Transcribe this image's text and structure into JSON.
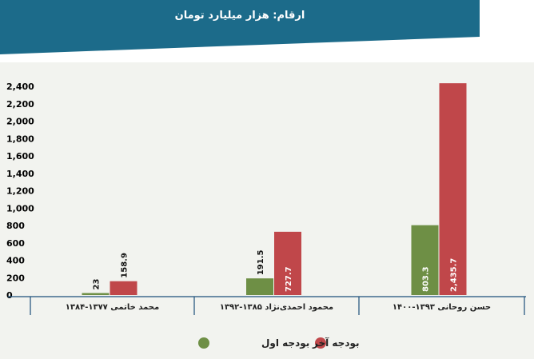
{
  "header": {
    "title": "ارقام: هزار میلیارد تومان"
  },
  "colors": {
    "banner": "#1c6b8a",
    "plot_background": "#f2f3ef",
    "series_first": "#6e8f45",
    "series_last": "#c0474a",
    "axis": "#1c4f7a"
  },
  "chart_data": {
    "type": "bar",
    "title": "",
    "xlabel": "",
    "ylabel": "",
    "ylim": [
      0,
      2400
    ],
    "y_ticks": [
      "2,400",
      "2,200",
      "2,000",
      "1,800",
      "1,600",
      "1,400",
      "1,200",
      "1,000",
      "800",
      "600",
      "400",
      "200",
      "0"
    ],
    "y_tick_values": [
      2400,
      2200,
      2000,
      1800,
      1600,
      1400,
      1200,
      1000,
      800,
      600,
      400,
      200,
      0
    ],
    "categories": [
      "محمد خاتمی ۱۳۷۷-۱۳۸۴",
      "محمود احمدی‌نژاد ۱۳۸۵-۱۳۹۲",
      "حسن روحانی ۱۳۹۳-۱۴۰۰"
    ],
    "series": [
      {
        "name": "بودجه اول",
        "values": [
          23,
          191.5,
          803.3
        ],
        "labels": [
          "23",
          "191.5",
          "803.3"
        ]
      },
      {
        "name": "بودجه آخر",
        "values": [
          158.9,
          727.7,
          2435.7
        ],
        "labels": [
          "158.9",
          "727.7",
          "2,435.7"
        ]
      }
    ],
    "legend_position": "bottom-center",
    "grid": false
  }
}
